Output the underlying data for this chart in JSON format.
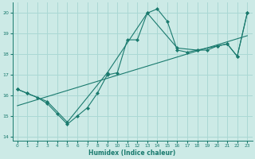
{
  "xlabel": "Humidex (Indice chaleur)",
  "bg_color": "#cceae6",
  "grid_color": "#aad8d4",
  "line_color": "#1a7a6e",
  "xlim": [
    -0.5,
    23.5
  ],
  "ylim": [
    13.8,
    20.5
  ],
  "yticks": [
    14,
    15,
    16,
    17,
    18,
    19,
    20
  ],
  "xticks": [
    0,
    1,
    2,
    3,
    4,
    5,
    6,
    7,
    8,
    9,
    10,
    11,
    12,
    13,
    14,
    15,
    16,
    17,
    18,
    19,
    20,
    21,
    22,
    23
  ],
  "series1_x": [
    0,
    1,
    2,
    3,
    4,
    5,
    6,
    7,
    8,
    9,
    10,
    11,
    12,
    13,
    14,
    15,
    16,
    17,
    18,
    19,
    20,
    21,
    22,
    23
  ],
  "series1_y": [
    16.3,
    16.1,
    15.9,
    15.6,
    15.1,
    14.6,
    15.0,
    15.4,
    16.1,
    17.0,
    17.1,
    18.7,
    18.7,
    20.0,
    20.2,
    19.6,
    18.2,
    18.1,
    18.2,
    18.2,
    18.4,
    18.5,
    17.9,
    20.0
  ],
  "series2_x": [
    0,
    23
  ],
  "series2_y": [
    15.5,
    18.9
  ],
  "series3_x": [
    0,
    1,
    3,
    5,
    9,
    13,
    16,
    18,
    20,
    21,
    22,
    23
  ],
  "series3_y": [
    16.3,
    16.1,
    15.7,
    14.7,
    17.1,
    20.0,
    18.3,
    18.2,
    18.4,
    18.5,
    17.9,
    20.0
  ]
}
